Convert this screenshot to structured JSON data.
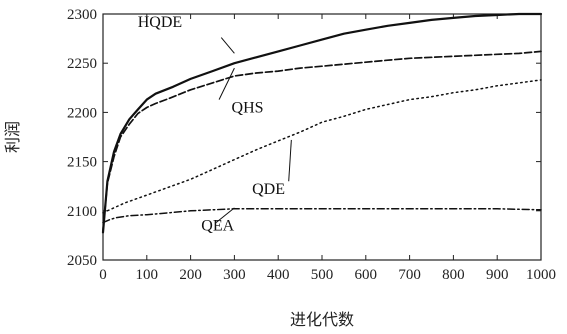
{
  "chart_data": {
    "type": "line",
    "title": "",
    "xlabel": "进化代数",
    "ylabel": "利润",
    "xlim": [
      0,
      1000
    ],
    "ylim": [
      2050,
      2300
    ],
    "xticks": [
      0,
      100,
      200,
      300,
      400,
      500,
      600,
      700,
      800,
      900,
      1000
    ],
    "yticks": [
      2050,
      2100,
      2150,
      2200,
      2250,
      2300
    ],
    "grid": false,
    "legend": "none",
    "series": [
      {
        "name": "HQDE",
        "style": "solid",
        "label_pos": [
          130,
          2287
        ],
        "label_line": [
          [
            270,
            2276
          ],
          [
            300,
            2260
          ]
        ],
        "points": [
          [
            0,
            2078
          ],
          [
            10,
            2130
          ],
          [
            25,
            2160
          ],
          [
            40,
            2178
          ],
          [
            60,
            2193
          ],
          [
            80,
            2203
          ],
          [
            100,
            2213
          ],
          [
            120,
            2219
          ],
          [
            160,
            2226
          ],
          [
            200,
            2234
          ],
          [
            250,
            2242
          ],
          [
            300,
            2250
          ],
          [
            350,
            2256
          ],
          [
            400,
            2262
          ],
          [
            450,
            2268
          ],
          [
            500,
            2274
          ],
          [
            550,
            2280
          ],
          [
            600,
            2284
          ],
          [
            650,
            2288
          ],
          [
            700,
            2291
          ],
          [
            750,
            2294
          ],
          [
            800,
            2296
          ],
          [
            850,
            2298
          ],
          [
            900,
            2299
          ],
          [
            950,
            2300
          ],
          [
            1000,
            2300
          ]
        ]
      },
      {
        "name": "QHS",
        "style": "dashed",
        "label_pos": [
          330,
          2200
        ],
        "label_line": [
          [
            265,
            2213
          ],
          [
            300,
            2245
          ]
        ],
        "points": [
          [
            0,
            2080
          ],
          [
            10,
            2128
          ],
          [
            25,
            2155
          ],
          [
            40,
            2175
          ],
          [
            60,
            2188
          ],
          [
            80,
            2199
          ],
          [
            100,
            2205
          ],
          [
            120,
            2209
          ],
          [
            150,
            2214
          ],
          [
            200,
            2223
          ],
          [
            250,
            2230
          ],
          [
            300,
            2237
          ],
          [
            350,
            2240
          ],
          [
            400,
            2242
          ],
          [
            450,
            2245
          ],
          [
            500,
            2247
          ],
          [
            550,
            2249
          ],
          [
            600,
            2251
          ],
          [
            650,
            2253
          ],
          [
            700,
            2255
          ],
          [
            750,
            2256
          ],
          [
            800,
            2257
          ],
          [
            850,
            2258
          ],
          [
            900,
            2259
          ],
          [
            950,
            2260
          ],
          [
            1000,
            2262
          ]
        ]
      },
      {
        "name": "QDE",
        "style": "dotted",
        "label_pos": [
          378,
          2117
        ],
        "label_line": [
          [
            424,
            2130
          ],
          [
            430,
            2172
          ]
        ],
        "points": [
          [
            0,
            2098
          ],
          [
            50,
            2108
          ],
          [
            100,
            2116
          ],
          [
            150,
            2124
          ],
          [
            200,
            2132
          ],
          [
            250,
            2142
          ],
          [
            300,
            2152
          ],
          [
            350,
            2162
          ],
          [
            400,
            2171
          ],
          [
            450,
            2180
          ],
          [
            500,
            2190
          ],
          [
            550,
            2196
          ],
          [
            600,
            2203
          ],
          [
            650,
            2208
          ],
          [
            700,
            2213
          ],
          [
            750,
            2216
          ],
          [
            800,
            2220
          ],
          [
            850,
            2223
          ],
          [
            900,
            2227
          ],
          [
            950,
            2230
          ],
          [
            1000,
            2233
          ]
        ]
      },
      {
        "name": "QEA",
        "style": "dashdot",
        "label_pos": [
          262,
          2080
        ],
        "label_line": [
          [
            258,
            2088
          ],
          [
            300,
            2103
          ]
        ],
        "points": [
          [
            0,
            2088
          ],
          [
            15,
            2091
          ],
          [
            30,
            2093
          ],
          [
            60,
            2095
          ],
          [
            100,
            2096
          ],
          [
            150,
            2098
          ],
          [
            200,
            2100
          ],
          [
            250,
            2101
          ],
          [
            300,
            2102
          ],
          [
            350,
            2102
          ],
          [
            400,
            2102
          ],
          [
            450,
            2102
          ],
          [
            500,
            2102
          ],
          [
            600,
            2102
          ],
          [
            700,
            2102
          ],
          [
            800,
            2102
          ],
          [
            900,
            2102
          ],
          [
            1000,
            2101
          ]
        ]
      }
    ]
  }
}
